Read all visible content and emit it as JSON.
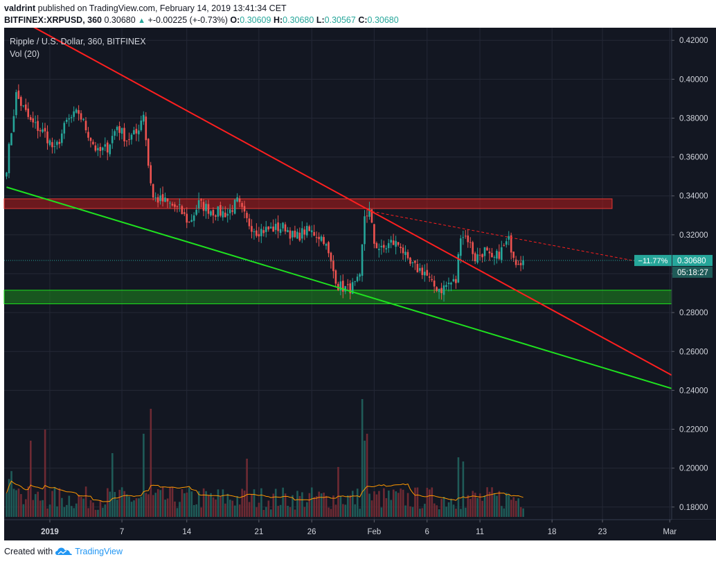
{
  "header": {
    "user": "valdrint",
    "published_text": "published on TradingView.com, February 14, 2019 13:41:34 CET",
    "symbol": "BITFINEX:XRPUSD, 360",
    "last": "0.30680",
    "change_arrow": "▲",
    "change": "+-0.00225 (+-0.73%)",
    "o_label": "O:",
    "o_value": "0.30609",
    "h_label": "H:",
    "h_value": "0.30680",
    "l_label": "L:",
    "l_value": "0.30567",
    "c_label": "C:",
    "c_value": "0.30680"
  },
  "footer": {
    "created_with": "Created with",
    "brand": "TradingView",
    "logo_icon": "tradingview-cloud-icon"
  },
  "chart_data": {
    "type": "candlestick",
    "title": "Ripple / U.S. Dollar, 360, BITFINEX",
    "indicator_label": "Vol (20)",
    "y_axis_ticks": [
      "0.42000",
      "0.40000",
      "0.38000",
      "0.36000",
      "0.34000",
      "0.32000",
      "0.30000",
      "0.28000",
      "0.26000",
      "0.24000",
      "0.22000",
      "0.20000",
      "0.18000"
    ],
    "x_axis_ticks": [
      "2019",
      "7",
      "14",
      "21",
      "26",
      "Feb",
      "6",
      "11",
      "18",
      "23",
      "Mar"
    ],
    "ylim": [
      0.1735,
      0.4265
    ],
    "last_price": 0.3068,
    "last_price_label": "0.30680",
    "change_pct_label": "−11.77%",
    "countdown_label": "05:18:27",
    "grid": true,
    "colors": {
      "background": "#131722",
      "up": "#26a69a",
      "down": "#ef5350",
      "resistance_line": "#ff1f1f",
      "support_line": "#1fe21f",
      "resistance_zone": "#b71c1c",
      "support_zone": "#1e8a1e",
      "volume_ma": "#ff9800"
    },
    "anchors": [
      {
        "x": 0,
        "close": 0.355
      },
      {
        "x": 4,
        "close": 0.392
      },
      {
        "x": 10,
        "close": 0.378
      },
      {
        "x": 16,
        "close": 0.372
      },
      {
        "x": 20,
        "close": 0.363
      },
      {
        "x": 25,
        "close": 0.378
      },
      {
        "x": 30,
        "close": 0.383
      },
      {
        "x": 34,
        "close": 0.372
      },
      {
        "x": 38,
        "close": 0.362
      },
      {
        "x": 42,
        "close": 0.365
      },
      {
        "x": 46,
        "close": 0.376
      },
      {
        "x": 50,
        "close": 0.369
      },
      {
        "x": 54,
        "close": 0.372
      },
      {
        "x": 57,
        "close": 0.383
      },
      {
        "x": 59,
        "close": 0.356
      },
      {
        "x": 61,
        "close": 0.339
      },
      {
        "x": 66,
        "close": 0.337
      },
      {
        "x": 72,
        "close": 0.333
      },
      {
        "x": 76,
        "close": 0.326
      },
      {
        "x": 80,
        "close": 0.336
      },
      {
        "x": 86,
        "close": 0.332
      },
      {
        "x": 92,
        "close": 0.331
      },
      {
        "x": 96,
        "close": 0.337
      },
      {
        "x": 100,
        "close": 0.327
      },
      {
        "x": 104,
        "close": 0.322
      },
      {
        "x": 110,
        "close": 0.323
      },
      {
        "x": 116,
        "close": 0.324
      },
      {
        "x": 120,
        "close": 0.318
      },
      {
        "x": 124,
        "close": 0.322
      },
      {
        "x": 128,
        "close": 0.321
      },
      {
        "x": 132,
        "close": 0.318
      },
      {
        "x": 135,
        "close": 0.305
      },
      {
        "x": 138,
        "close": 0.294
      },
      {
        "x": 142,
        "close": 0.292
      },
      {
        "x": 145,
        "close": 0.294
      },
      {
        "x": 147,
        "close": 0.297
      },
      {
        "x": 149,
        "close": 0.33
      },
      {
        "x": 151,
        "close": 0.332
      },
      {
        "x": 153,
        "close": 0.316
      },
      {
        "x": 156,
        "close": 0.312
      },
      {
        "x": 160,
        "close": 0.316
      },
      {
        "x": 164,
        "close": 0.315
      },
      {
        "x": 167,
        "close": 0.305
      },
      {
        "x": 170,
        "close": 0.303
      },
      {
        "x": 174,
        "close": 0.301
      },
      {
        "x": 177,
        "close": 0.294
      },
      {
        "x": 181,
        "close": 0.292
      },
      {
        "x": 184,
        "close": 0.295
      },
      {
        "x": 187,
        "close": 0.296
      },
      {
        "x": 189,
        "close": 0.321
      },
      {
        "x": 192,
        "close": 0.318
      },
      {
        "x": 195,
        "close": 0.308
      },
      {
        "x": 199,
        "close": 0.312
      },
      {
        "x": 202,
        "close": 0.306
      },
      {
        "x": 206,
        "close": 0.312
      },
      {
        "x": 209,
        "close": 0.317
      },
      {
        "x": 212,
        "close": 0.307
      },
      {
        "x": 215,
        "close": 0.3068
      }
    ],
    "volume": {
      "series": "Vol (20)",
      "spikes": [
        {
          "x": 57,
          "value": 0.6
        },
        {
          "x": 60,
          "value": 0.78
        },
        {
          "x": 148,
          "value": 0.85
        },
        {
          "x": 149,
          "value": 0.55
        },
        {
          "x": 150,
          "value": 0.6
        },
        {
          "x": 188,
          "value": 0.43
        },
        {
          "x": 190,
          "value": 0.4
        },
        {
          "x": 10,
          "value": 0.55
        },
        {
          "x": 16,
          "value": 0.63
        },
        {
          "x": 100,
          "value": 0.42
        },
        {
          "x": 44,
          "value": 0.46
        },
        {
          "x": 138,
          "value": 0.36
        }
      ],
      "base_level": 0.18
    },
    "overlays": {
      "resistance_zone": [
        0.3335,
        0.3385
      ],
      "support_zone": [
        0.2845,
        0.2915
      ],
      "descending_resistance": {
        "from": {
          "x": 8,
          "y": 0.429
        },
        "to": {
          "x": 278,
          "y": 0.247
        }
      },
      "descending_support": {
        "from": {
          "x": 0,
          "y": 0.3445
        },
        "to": {
          "x": 278,
          "y": 0.2405
        }
      },
      "dashed_projection": {
        "from": {
          "x": 152,
          "y": 0.332
        },
        "to": {
          "x": 264,
          "y": 0.306
        }
      }
    }
  }
}
